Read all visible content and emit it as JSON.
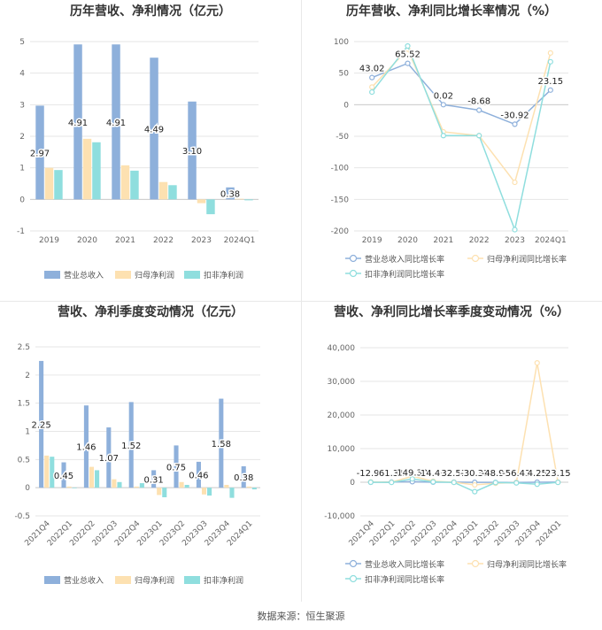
{
  "source": "数据来源：恒生聚源",
  "colors": {
    "revenue": "#8eb0db",
    "parent_profit": "#fde1b1",
    "deducted_profit": "#8fdede"
  },
  "chart_data": [
    {
      "id": "annual-values",
      "type": "bar",
      "title": "历年营收、净利情况（亿元）",
      "categories": [
        "2019",
        "2020",
        "2021",
        "2022",
        "2023",
        "2024Q1"
      ],
      "ylim": [
        -1,
        5
      ],
      "yticks": [
        -1,
        0,
        1,
        2,
        3,
        4,
        5
      ],
      "series": [
        {
          "name": "营业总收入",
          "color": "#8eb0db",
          "values": [
            2.97,
            4.91,
            4.91,
            4.49,
            3.1,
            0.38
          ]
        },
        {
          "name": "归母净利润",
          "color": "#fde1b1",
          "values": [
            1.0,
            1.92,
            1.08,
            0.55,
            -0.12,
            0.02
          ]
        },
        {
          "name": "扣非净利润",
          "color": "#8fdede",
          "values": [
            0.93,
            1.81,
            0.91,
            0.45,
            -0.47,
            -0.03
          ]
        }
      ],
      "data_labels": [
        "2.97",
        "4.91",
        "4.91",
        "4.49",
        "3.10",
        "0.38"
      ],
      "grid": true,
      "legend": "bottom"
    },
    {
      "id": "annual-growth",
      "type": "line",
      "title": "历年营收、净利同比增长率情况（%）",
      "categories": [
        "2019",
        "2020",
        "2021",
        "2022",
        "2023",
        "2024Q1"
      ],
      "ylim": [
        -200,
        100
      ],
      "yticks": [
        -200,
        -150,
        -100,
        -50,
        0,
        50,
        100
      ],
      "series": [
        {
          "name": "营业总收入同比增长率",
          "color": "#8eb0db",
          "values": [
            43.02,
            65.52,
            0.02,
            -8.68,
            -30.92,
            23.15
          ]
        },
        {
          "name": "归母净利润同比增长率",
          "color": "#fde1b1",
          "values": [
            28,
            88,
            -43,
            -49,
            -123,
            82
          ]
        },
        {
          "name": "扣非净利润同比增长率",
          "color": "#8fdede",
          "values": [
            20,
            93,
            -49,
            -49,
            -198,
            68
          ]
        }
      ],
      "data_labels": [
        "43.02",
        "65.52",
        "0.02",
        "-8.68",
        "-30.92",
        "23.15"
      ],
      "grid": true,
      "legend": "bottom"
    },
    {
      "id": "quarterly-values",
      "type": "bar",
      "title": "营收、净利季度变动情况（亿元）",
      "categories": [
        "2021Q4",
        "2022Q1",
        "2022Q2",
        "2022Q3",
        "2022Q4",
        "2023Q1",
        "2023Q2",
        "2023Q3",
        "2023Q4",
        "2024Q1"
      ],
      "ylim": [
        -0.5,
        2.5
      ],
      "yticks": [
        -0.5,
        0,
        0.5,
        1,
        1.5,
        2,
        2.5
      ],
      "series": [
        {
          "name": "营业总收入",
          "color": "#8eb0db",
          "values": [
            2.25,
            0.45,
            1.46,
            1.07,
            1.52,
            0.31,
            0.75,
            0.46,
            1.58,
            0.38
          ]
        },
        {
          "name": "归母净利润",
          "color": "#fde1b1",
          "values": [
            0.57,
            0.02,
            0.37,
            0.15,
            0.02,
            -0.13,
            0.1,
            -0.12,
            0.05,
            0.02
          ]
        },
        {
          "name": "扣非净利润",
          "color": "#8fdede",
          "values": [
            0.55,
            -0.01,
            0.31,
            0.1,
            0.08,
            -0.17,
            0.05,
            -0.14,
            -0.18,
            -0.03
          ]
        }
      ],
      "data_labels": [
        "2.25",
        "0.45",
        "1.46",
        "1.07",
        "1.52",
        "0.31",
        "0.75",
        "0.46",
        "1.58",
        "0.38"
      ],
      "grid": true,
      "legend": "bottom"
    },
    {
      "id": "quarterly-growth",
      "type": "line",
      "title": "营收、净利同比增长率季度变动情况（%）",
      "categories": [
        "2021Q4",
        "2022Q1",
        "2022Q2",
        "2022Q3",
        "2022Q4",
        "2023Q1",
        "2023Q2",
        "2023Q3",
        "2023Q4",
        "2024Q1"
      ],
      "ylim": [
        -10000,
        40000
      ],
      "yticks": [
        -10000,
        0,
        10000,
        20000,
        30000,
        40000
      ],
      "series": [
        {
          "name": "营业总收入同比增长率",
          "color": "#8eb0db",
          "values": [
            -12.99,
            61.31,
            149.3,
            14.49,
            32.51,
            -30.31,
            -48.97,
            -56.43,
            4.25,
            23.15
          ]
        },
        {
          "name": "归母净利润同比增长率",
          "color": "#fde1b1",
          "values": [
            100,
            0,
            1800,
            300,
            0,
            -800,
            -300,
            -100,
            35500,
            0
          ]
        },
        {
          "name": "扣非净利润同比增长率",
          "color": "#8fdede",
          "values": [
            0,
            -50,
            1000,
            100,
            -50,
            -2800,
            -100,
            -200,
            -600,
            -50
          ]
        }
      ],
      "data_labels": [
        "-12.99",
        "61.31",
        "149.30",
        "14.49",
        "32.51",
        "-30.31",
        "-48.97",
        "-56.43",
        "4.25",
        "23.15"
      ],
      "grid": true,
      "legend": "bottom"
    }
  ]
}
